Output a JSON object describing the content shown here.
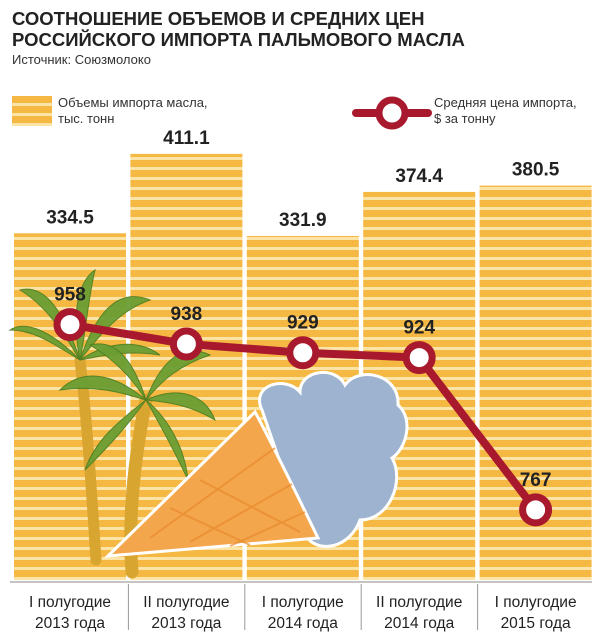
{
  "header": {
    "title_line1": "СООТНОШЕНИЕ ОБЪЕМОВ И СРЕДНИХ ЦЕН",
    "title_line2": "РОССИЙСКОГО ИМПОРТА ПАЛЬМОВОГО МАСЛА",
    "source": "Источник: Союзмолоко"
  },
  "legend": {
    "bar_line1": "Объемы импорта масла,",
    "bar_line2": "тыс. тонн",
    "line_line1": "Средняя цена импорта,",
    "line_line2": "$ за тонну"
  },
  "colors": {
    "bar": "#F5B843",
    "bar_stripe": "#FCE3A6",
    "line": "#A8192E",
    "text": "#222222",
    "cone": "#F4A64C",
    "cream": "#9DB3CF",
    "palm_leaf": "#6A9E33",
    "palm_trunk": "#D9A531"
  },
  "chart_data": {
    "type": "bar",
    "title": "Соотношение объемов и средних цен российского импорта пальмового масла",
    "categories": [
      [
        "I полугодие",
        "2013 года"
      ],
      [
        "II полугодие",
        "2013 года"
      ],
      [
        "I полугодие",
        "2014 года"
      ],
      [
        "II полугодие",
        "2014 года"
      ],
      [
        "I полугодие",
        "2015 года"
      ]
    ],
    "series": [
      {
        "name": "Объемы импорта масла, тыс. тонн",
        "type": "bar",
        "values": [
          334.5,
          411.1,
          331.9,
          374.4,
          380.5
        ],
        "labels": [
          "334.5",
          "411.1",
          "331.9",
          "374.4",
          "380.5"
        ]
      },
      {
        "name": "Средняя цена импорта, $ за тонну",
        "type": "line",
        "values": [
          958,
          938,
          929,
          924,
          767
        ],
        "labels": [
          "958",
          "938",
          "929",
          "924",
          "767"
        ]
      }
    ],
    "legend_position": "top"
  }
}
